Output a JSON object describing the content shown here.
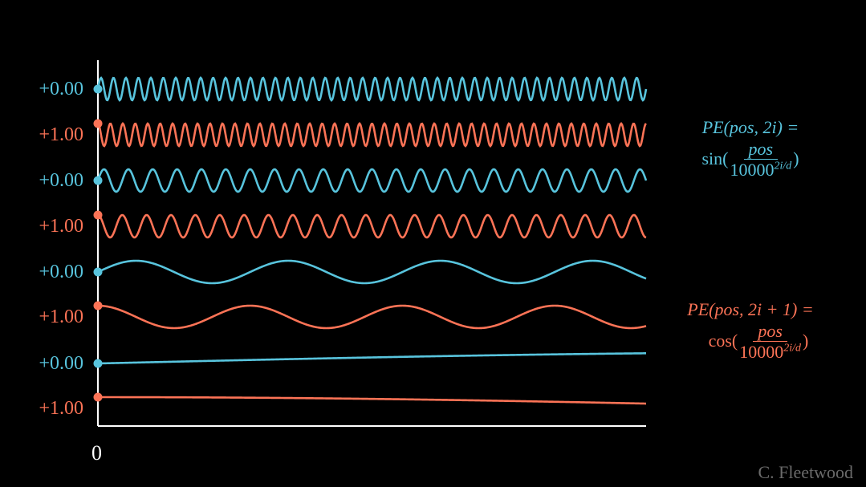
{
  "chart_data": {
    "type": "line",
    "title": "",
    "xlabel": "",
    "ylabel": "",
    "x_tick_labels": [
      "0"
    ],
    "xlim": [
      0,
      1
    ],
    "grid": false,
    "colors": {
      "sin": "#58C4DD",
      "cos": "#FC7356",
      "axis": "#FFFFFF"
    },
    "series": [
      {
        "name": "sin dim 0",
        "label": "+0.00",
        "func": "sin",
        "start_value": 0.0,
        "cycles_over_range": 44
      },
      {
        "name": "cos dim 1",
        "label": "+1.00",
        "func": "cos",
        "start_value": 1.0,
        "cycles_over_range": 44
      },
      {
        "name": "sin dim 2",
        "label": "+0.00",
        "func": "sin",
        "start_value": 0.0,
        "cycles_over_range": 22.5
      },
      {
        "name": "cos dim 3",
        "label": "+1.00",
        "func": "cos",
        "start_value": 1.0,
        "cycles_over_range": 22.5
      },
      {
        "name": "sin dim 4",
        "label": "+0.00",
        "func": "sin",
        "start_value": 0.0,
        "cycles_over_range": 3.6
      },
      {
        "name": "cos dim 5",
        "label": "+1.00",
        "func": "cos",
        "start_value": 1.0,
        "cycles_over_range": 3.6
      },
      {
        "name": "sin dim 6",
        "label": "+0.00",
        "func": "sin",
        "start_value": 0.0,
        "cycles_over_range": 0.18
      },
      {
        "name": "cos dim 7",
        "label": "+1.00",
        "func": "cos",
        "start_value": 1.0,
        "cycles_over_range": 0.18
      }
    ]
  },
  "formulas": {
    "sin": {
      "lhs": "PE(pos, 2i) =",
      "fn": "sin(",
      "num": "pos",
      "den_base": "10000",
      "den_exp": "2i/d",
      "close": ")"
    },
    "cos": {
      "lhs": "PE(pos, 2i + 1) =",
      "fn": "cos(",
      "num": "pos",
      "den_base": "10000",
      "den_exp": "2i/d",
      "close": ")"
    }
  },
  "watermark": "C. Fleetwood"
}
